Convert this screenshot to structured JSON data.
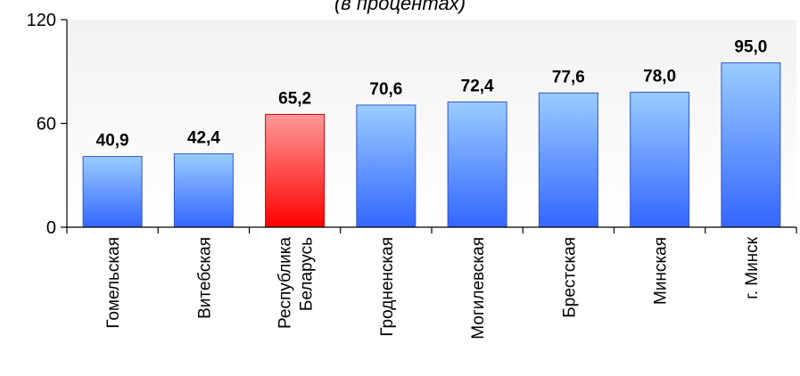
{
  "chart_data": {
    "type": "bar",
    "subtitle": "(в процентах)",
    "categories": [
      "Гомельская",
      "Витебская",
      "Республика Беларусь",
      "Гродненская",
      "Могилевская",
      "Брестская",
      "Минская",
      "г. Минск"
    ],
    "category_lines": [
      [
        "Гомельская"
      ],
      [
        "Витебская"
      ],
      [
        "Республика",
        "Беларусь"
      ],
      [
        "Гродненская"
      ],
      [
        "Могилевская"
      ],
      [
        "Брестская"
      ],
      [
        "Минская"
      ],
      [
        "г. Минск"
      ]
    ],
    "values": [
      40.9,
      42.4,
      65.2,
      70.6,
      72.4,
      77.6,
      78.0,
      95.0
    ],
    "value_labels": [
      "40,9",
      "42,4",
      "65,2",
      "70,6",
      "72,4",
      "77,6",
      "78,0",
      "95,0"
    ],
    "highlight_index": 2,
    "ylim": [
      0,
      120
    ],
    "yticks": [
      0,
      60,
      120
    ],
    "colors": {
      "bar_top": "#99ccff",
      "bar_bottom": "#3366ff",
      "bar_stroke": "#3355cc",
      "highlight_top": "#ff9999",
      "highlight_bottom": "#ff0000",
      "highlight_stroke": "#cc0000",
      "plot_bg_top": "#f2f2f2",
      "plot_bg_bottom": "#ffffff"
    }
  }
}
